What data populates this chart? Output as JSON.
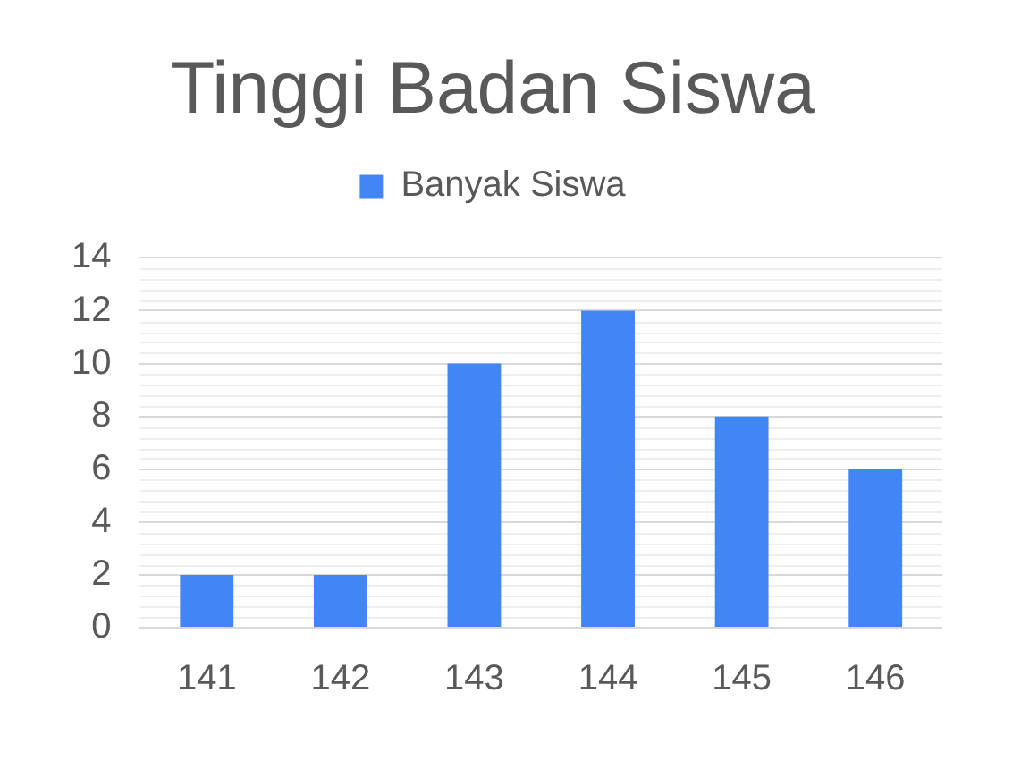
{
  "chart_data": {
    "type": "bar",
    "title": "Tinggi Badan Siswa",
    "categories": [
      "141",
      "142",
      "143",
      "144",
      "145",
      "146"
    ],
    "series": [
      {
        "name": "Banyak Siswa",
        "color": "#4285f4",
        "values": [
          2,
          2,
          10,
          12,
          8,
          6
        ]
      }
    ],
    "ylim": [
      0,
      14
    ],
    "yticks": [
      0,
      2,
      4,
      6,
      8,
      10,
      12,
      14
    ],
    "grid": "y",
    "legend": "top"
  }
}
